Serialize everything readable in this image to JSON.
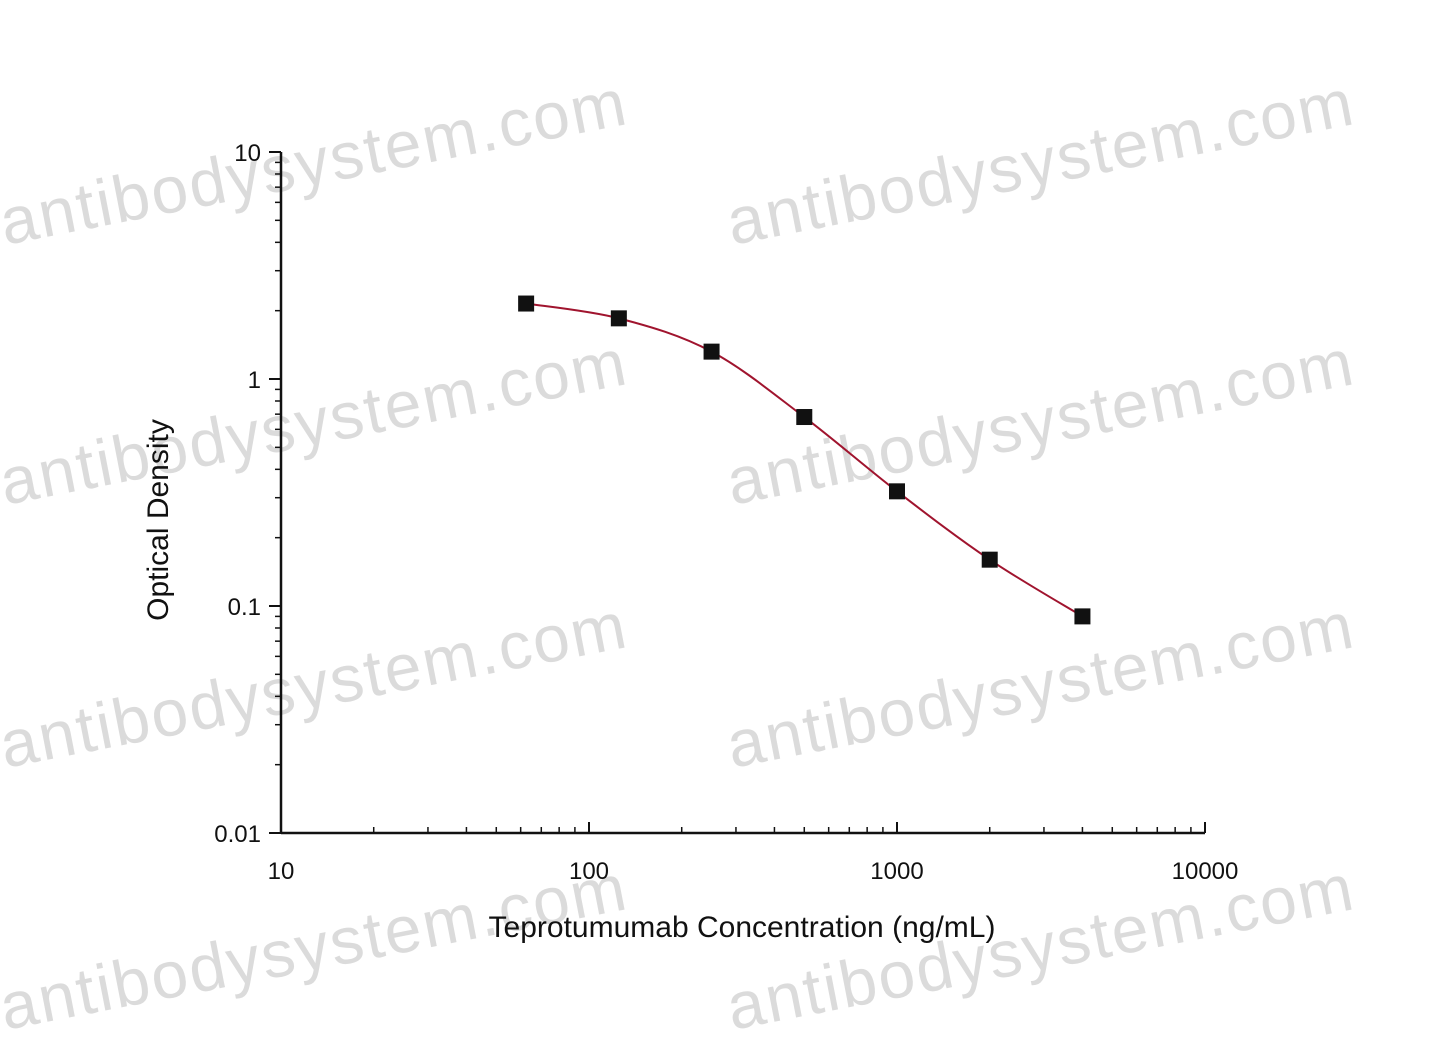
{
  "watermark": {
    "text": "antibodysystem.com"
  },
  "chart_data": {
    "type": "scatter",
    "title": "",
    "xlabel": "Teprotumumab Concentration (ng/mL)",
    "ylabel": "Optical Density",
    "xscale": "log",
    "yscale": "log",
    "xlim": [
      10,
      10000
    ],
    "ylim": [
      0.01,
      10
    ],
    "x_ticks": [
      10,
      100,
      1000,
      10000
    ],
    "x_tick_labels": [
      "10",
      "100",
      "1000",
      "10000"
    ],
    "y_ticks": [
      0.01,
      0.1,
      1,
      10
    ],
    "y_tick_labels": [
      "0.01",
      "0.1",
      "1",
      "10"
    ],
    "grid": false,
    "legend": "none",
    "series": [
      {
        "marker": "square",
        "color": "#111111",
        "x": [
          62.5,
          125,
          250,
          500,
          1000,
          2000,
          4000
        ],
        "y": [
          2.15,
          1.85,
          1.32,
          0.68,
          0.32,
          0.16,
          0.09
        ]
      }
    ],
    "fit_curve": {
      "color": "#a0142e",
      "x_range": [
        62.5,
        4000
      ]
    }
  }
}
